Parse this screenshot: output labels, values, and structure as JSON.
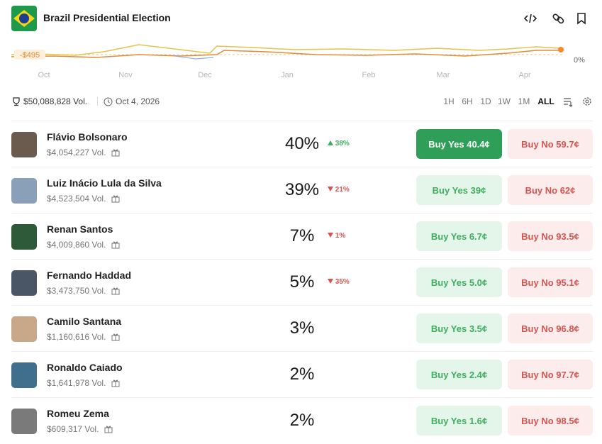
{
  "header": {
    "title": "Brazil Presidential Election"
  },
  "chart": {
    "marker_label": "-$495",
    "axis_label": "0%",
    "months": [
      "Oct",
      "Nov",
      "Dec",
      "Jan",
      "Feb",
      "Mar",
      "Apr"
    ]
  },
  "stats": {
    "volume": "$50,088,828 Vol.",
    "date": "Oct 4, 2026",
    "ranges": [
      "1H",
      "6H",
      "1D",
      "1W",
      "1M",
      "ALL"
    ],
    "active_range": "ALL"
  },
  "candidates": [
    {
      "name": "Flávio Bolsonaro",
      "volume": "$4,054,227 Vol.",
      "chance": "40%",
      "change": "38%",
      "direction": "up",
      "buy_yes": "Buy Yes 40.4¢",
      "buy_no": "Buy No 59.7¢",
      "selected": true
    },
    {
      "name": "Luiz Inácio Lula da Silva",
      "volume": "$4,523,504 Vol.",
      "chance": "39%",
      "change": "21%",
      "direction": "down",
      "buy_yes": "Buy Yes 39¢",
      "buy_no": "Buy No 62¢",
      "selected": false
    },
    {
      "name": "Renan Santos",
      "volume": "$4,009,860 Vol.",
      "chance": "7%",
      "change": "1%",
      "direction": "down",
      "buy_yes": "Buy Yes 6.7¢",
      "buy_no": "Buy No 93.5¢",
      "selected": false
    },
    {
      "name": "Fernando Haddad",
      "volume": "$3,473,750 Vol.",
      "chance": "5%",
      "change": "35%",
      "direction": "down",
      "buy_yes": "Buy Yes 5.0¢",
      "buy_no": "Buy No 95.1¢",
      "selected": false
    },
    {
      "name": "Camilo Santana",
      "volume": "$1,160,616 Vol.",
      "chance": "3%",
      "change": null,
      "direction": null,
      "buy_yes": "Buy Yes 3.5¢",
      "buy_no": "Buy No 96.8¢",
      "selected": false
    },
    {
      "name": "Ronaldo Caiado",
      "volume": "$1,641,978 Vol.",
      "chance": "2%",
      "change": null,
      "direction": null,
      "buy_yes": "Buy Yes 2.4¢",
      "buy_no": "Buy No 97.7¢",
      "selected": false
    },
    {
      "name": "Romeu Zema",
      "volume": "$609,317 Vol.",
      "chance": "2%",
      "change": null,
      "direction": null,
      "buy_yes": "Buy Yes 1.6¢",
      "buy_no": "Buy No 98.5¢",
      "selected": false
    }
  ]
}
